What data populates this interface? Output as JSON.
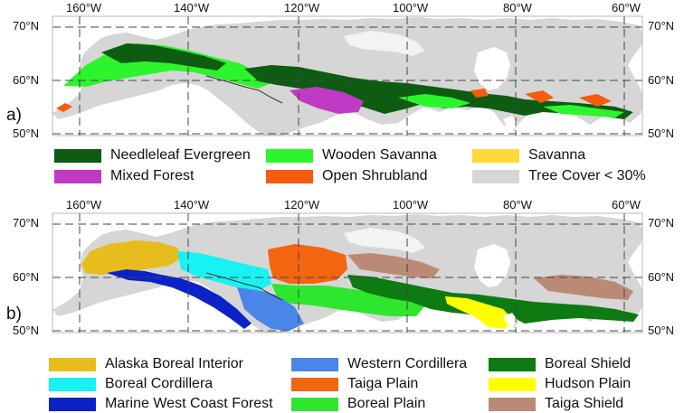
{
  "lon_labels": [
    "160°W",
    "140°W",
    "120°W",
    "100°W",
    "80°W",
    "60°W"
  ],
  "lat_labels": [
    "70°N",
    "60°N",
    "50°N"
  ],
  "panel_a": {
    "letter": "a)",
    "legend": [
      {
        "label": "Needleleaf Evergreen",
        "color": "#0d5c12"
      },
      {
        "label": "Wooden Savanna",
        "color": "#2df52d"
      },
      {
        "label": "Savanna",
        "color": "#ffd83a"
      },
      {
        "label": "Mixed Forest",
        "color": "#c13ac4"
      },
      {
        "label": "Open Shrubland",
        "color": "#f45c0e"
      },
      {
        "label": "Tree Cover < 30%",
        "color": "#d6d6d6"
      }
    ]
  },
  "panel_b": {
    "letter": "b)",
    "legend": [
      {
        "label": "Alaska Boreal Interior",
        "color": "#e6bd1c"
      },
      {
        "label": "Western Cordillera",
        "color": "#4a86e8"
      },
      {
        "label": "Boreal Shield",
        "color": "#0e7a12"
      },
      {
        "label": "Boreal Cordillera",
        "color": "#19f2f2"
      },
      {
        "label": "Taiga Plain",
        "color": "#f4650f"
      },
      {
        "label": "Hudson Plain",
        "color": "#ffff00"
      },
      {
        "label": "Marine West Coast Forest",
        "color": "#0b22c8"
      },
      {
        "label": "Boreal Plain",
        "color": "#2ee62e"
      },
      {
        "label": "Taiga Shield",
        "color": "#bb8a76"
      }
    ]
  },
  "colors": {
    "land": "#d6d6d6",
    "grid": "#444444"
  }
}
